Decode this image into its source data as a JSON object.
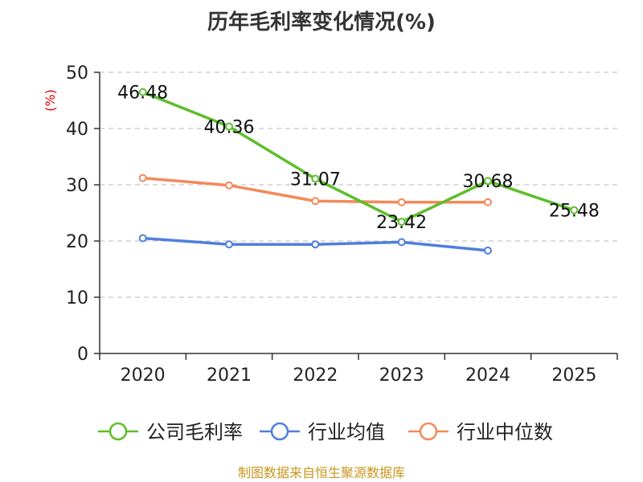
{
  "chart_data": {
    "type": "line",
    "title": "历年毛利率变化情况(%)",
    "ylabel": "(%)",
    "xlabel": "",
    "categories": [
      "2020",
      "2021",
      "2022",
      "2023",
      "2024",
      "2025"
    ],
    "ylim": [
      0,
      50
    ],
    "yticks": [
      0,
      10,
      20,
      30,
      40,
      50
    ],
    "grid": true,
    "legend_position": "bottom",
    "series": [
      {
        "name": "公司毛利率",
        "color": "#5cbf2a",
        "values": [
          46.48,
          40.36,
          31.07,
          23.42,
          30.68,
          25.48
        ],
        "labels": [
          "46.48",
          "40.36",
          "31.07",
          "23.42",
          "30.68",
          "25.48"
        ]
      },
      {
        "name": "行业均值",
        "color": "#4f7fdb",
        "values": [
          20.5,
          19.4,
          19.4,
          19.8,
          18.3,
          null
        ]
      },
      {
        "name": "行业中位数",
        "color": "#f4895a",
        "values": [
          31.2,
          29.9,
          27.1,
          26.9,
          26.9,
          null
        ]
      }
    ],
    "source": "制图数据来自恒生聚源数据库"
  }
}
